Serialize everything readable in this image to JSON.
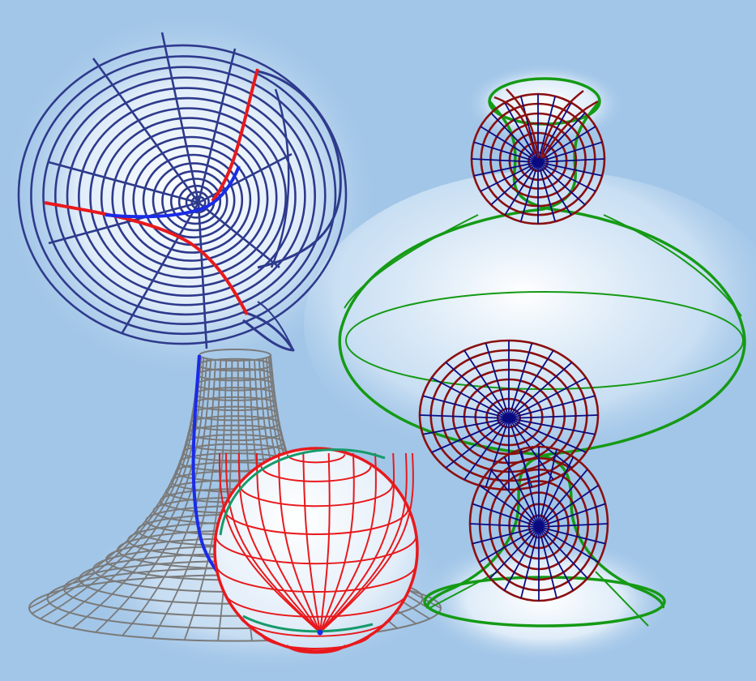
{
  "figure": {
    "background": "#a2c6e8",
    "glow": "#ffffff",
    "surfaces": [
      {
        "name": "cone-surface-top-left",
        "primary": "#2e3a8c",
        "accents": [
          "#e8191c",
          "#1a2be8"
        ]
      },
      {
        "name": "pseudosphere-bottom-left",
        "primary": "#7a7a7a",
        "accents": [
          "#1a2be8"
        ]
      },
      {
        "name": "sphere-bottom-center",
        "primary": "#e8191c",
        "accents": [
          "#169a6a"
        ]
      },
      {
        "name": "vase-surface-right",
        "primary": "#159a15",
        "accents": [
          "#8b0f0f",
          "#0a0a80"
        ]
      }
    ]
  }
}
